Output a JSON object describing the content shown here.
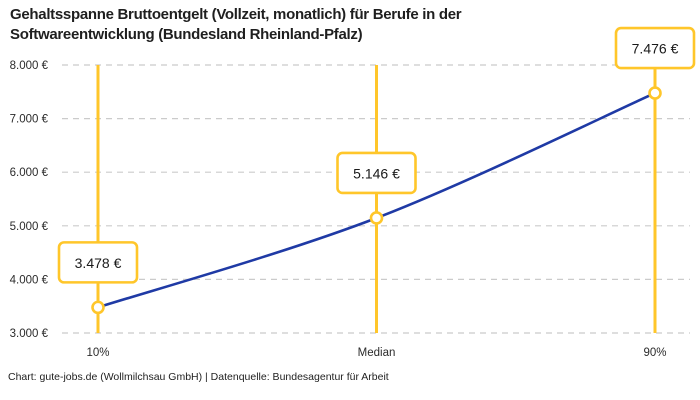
{
  "title": {
    "line1": "Gehaltsspanne Bruttoentgelt (Vollzeit, monatlich) für Berufe in der",
    "line2": "Softwareentwicklung (Bundesland Rheinland-Pfalz)"
  },
  "footer": {
    "text": "Chart: gute-jobs.de (Wollmilchsau GmbH) | Datenquelle: Bundesagentur für Arbeit"
  },
  "colors": {
    "accent_yellow": "#FFC62A",
    "line_blue": "#1F3AA5",
    "grid_gray": "#CBCBCB",
    "title_text": "#1F1F1F",
    "axis_text": "#2B2B2B",
    "label_text": "#1A1A1A",
    "background": "#FFFFFF"
  },
  "chart_data": {
    "type": "line",
    "title": "Gehaltsspanne Bruttoentgelt (Vollzeit, monatlich) für Berufe in der Softwareentwicklung (Bundesland Rheinland-Pfalz)",
    "xlabel": "",
    "ylabel": "",
    "categories": [
      "10%",
      "Median",
      "90%"
    ],
    "values": [
      3478,
      5146,
      7476
    ],
    "point_labels": [
      "3.478 €",
      "5.146 €",
      "7.476 €"
    ],
    "y_tick_values": [
      3000,
      4000,
      5000,
      6000,
      7000,
      8000
    ],
    "y_tick_labels": [
      "3.000 €",
      "4.000 €",
      "5.000 €",
      "6.000 €",
      "7.000 €",
      "8.000 €"
    ],
    "ylim": [
      3000,
      8000
    ],
    "grid": "horizontal-dashed",
    "legend": "none",
    "marker_style": "open-circle-on-vertical-rule",
    "currency": "EUR"
  }
}
